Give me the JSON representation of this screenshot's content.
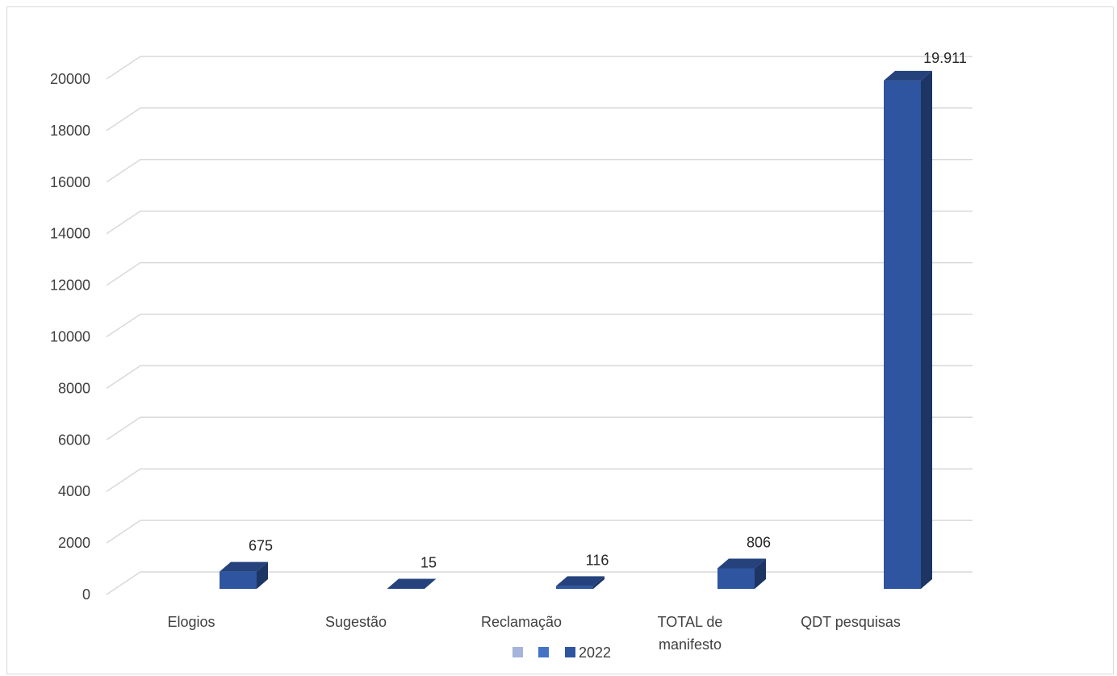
{
  "chart_data": {
    "type": "bar",
    "style": "3d-column",
    "categories": [
      "Elogios",
      "Sugestão",
      "Reclamação",
      "TOTAL de manifesto",
      "QDT pesquisas"
    ],
    "category_lines": [
      [
        "Elogios"
      ],
      [
        "Sugestão"
      ],
      [
        "Reclamação"
      ],
      [
        "TOTAL de",
        "manifesto"
      ],
      [
        "QDT pesquisas"
      ]
    ],
    "series": [
      {
        "name": "",
        "values": [
          null,
          null,
          null,
          null,
          null
        ],
        "color": "#a5b4dc"
      },
      {
        "name": "",
        "values": [
          null,
          null,
          null,
          null,
          null
        ],
        "color": "#4472c4"
      },
      {
        "name": "2022",
        "values": [
          675,
          15,
          116,
          806,
          19911
        ],
        "color": "#2f55a0",
        "data_labels": [
          "675",
          "15",
          "116",
          "806",
          "19.911"
        ]
      }
    ],
    "ylim": [
      0,
      20000
    ],
    "yticks": [
      "0",
      "2000",
      "4000",
      "6000",
      "8000",
      "10000",
      "12000",
      "14000",
      "16000",
      "18000",
      "20000"
    ],
    "grid": true,
    "legend": "bottom",
    "title": "",
    "xlabel": "",
    "ylabel": ""
  }
}
